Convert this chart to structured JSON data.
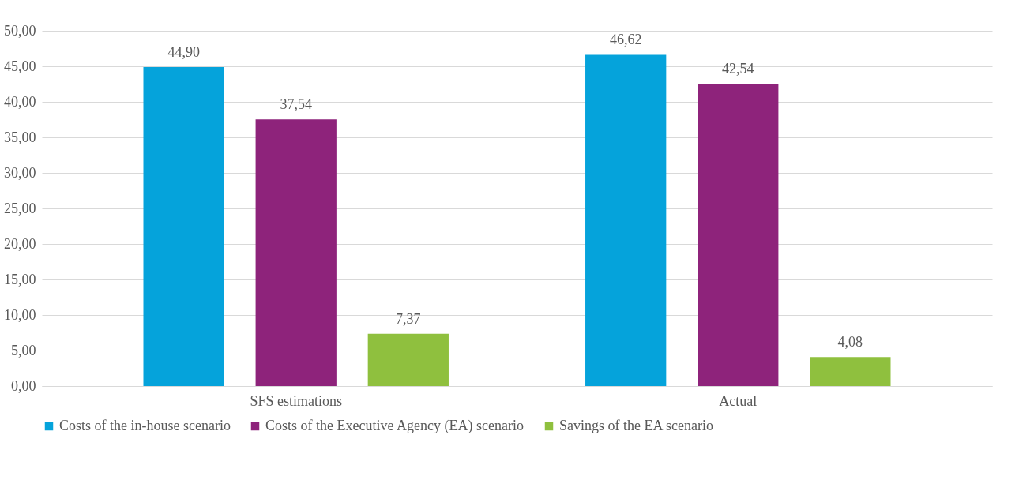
{
  "chart_data": {
    "type": "bar",
    "categories": [
      "SFS estimations",
      "Actual"
    ],
    "series": [
      {
        "name": "Costs of the in-house scenario",
        "color": "#05a3db",
        "values": [
          44.9,
          46.62
        ],
        "value_labels": [
          "44,90",
          "46,62"
        ]
      },
      {
        "name": "Costs of the Executive Agency (EA) scenario",
        "color": "#8e237b",
        "values": [
          37.54,
          42.54
        ],
        "value_labels": [
          "37,54",
          "42,54"
        ]
      },
      {
        "name": "Savings of the EA scenario",
        "color": "#8fc03e",
        "values": [
          7.37,
          4.08
        ],
        "value_labels": [
          "7,37",
          "4,08"
        ]
      }
    ],
    "ylim": [
      0,
      50
    ],
    "yticks": [
      {
        "value": 0,
        "label": "0,00"
      },
      {
        "value": 5,
        "label": "5,00"
      },
      {
        "value": 10,
        "label": "10,00"
      },
      {
        "value": 15,
        "label": "15,00"
      },
      {
        "value": 20,
        "label": "20,00"
      },
      {
        "value": 25,
        "label": "25,00"
      },
      {
        "value": 30,
        "label": "30,00"
      },
      {
        "value": 35,
        "label": "35,00"
      },
      {
        "value": 40,
        "label": "40,00"
      },
      {
        "value": 45,
        "label": "45,00"
      },
      {
        "value": 50,
        "label": "50,00"
      }
    ],
    "grid": "y",
    "legend": "bottom"
  }
}
